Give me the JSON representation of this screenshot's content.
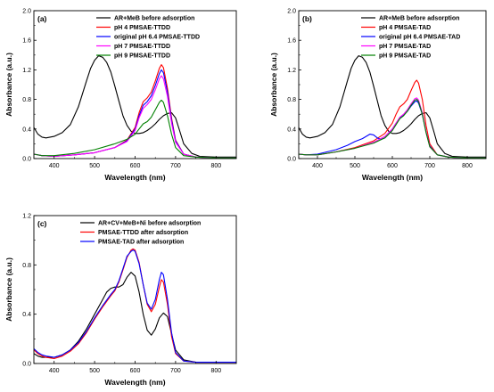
{
  "chart_data": [
    {
      "type": "line",
      "panel_label": "(a)",
      "xlabel": "Wavelength (nm)",
      "ylabel": "Absorbance (a.u.)",
      "xlim": [
        350,
        850
      ],
      "ylim": [
        0.0,
        2.0
      ],
      "xticks": [
        400,
        500,
        600,
        700,
        800
      ],
      "yticks": [
        0.0,
        0.4,
        0.8,
        1.2,
        1.6,
        2.0
      ],
      "ytick_labels": [
        "0.0",
        "0.4",
        "0.8",
        "1.2",
        "1.6",
        "2.0"
      ],
      "legend_position": "top-right",
      "series": [
        {
          "name": "AR+MeB before adsorption",
          "color": "#000000",
          "x": [
            350,
            360,
            370,
            380,
            400,
            420,
            440,
            460,
            480,
            490,
            500,
            510,
            520,
            530,
            540,
            550,
            560,
            570,
            580,
            590,
            600,
            610,
            620,
            630,
            640,
            650,
            660,
            670,
            680,
            690,
            700,
            710,
            720,
            740,
            760,
            800,
            850
          ],
          "y": [
            0.42,
            0.33,
            0.29,
            0.28,
            0.3,
            0.35,
            0.46,
            0.7,
            1.05,
            1.22,
            1.33,
            1.39,
            1.37,
            1.3,
            1.17,
            0.98,
            0.78,
            0.58,
            0.45,
            0.37,
            0.34,
            0.34,
            0.35,
            0.38,
            0.42,
            0.47,
            0.53,
            0.58,
            0.61,
            0.62,
            0.55,
            0.38,
            0.2,
            0.07,
            0.03,
            0.02,
            0.02
          ]
        },
        {
          "name": "pH 4 PMSAE-TTDD",
          "color": "#ff0000",
          "x": [
            350,
            370,
            400,
            450,
            500,
            550,
            580,
            600,
            610,
            620,
            630,
            640,
            650,
            660,
            665,
            670,
            680,
            690,
            700,
            720,
            750,
            800,
            850
          ],
          "y": [
            0.06,
            0.04,
            0.03,
            0.05,
            0.08,
            0.15,
            0.25,
            0.42,
            0.62,
            0.77,
            0.82,
            0.9,
            1.05,
            1.22,
            1.27,
            1.23,
            0.95,
            0.55,
            0.25,
            0.06,
            0.02,
            0.01,
            0.01
          ]
        },
        {
          "name": "original pH 6.4 PMSAE-TTDD",
          "color": "#0000ff",
          "x": [
            350,
            370,
            400,
            450,
            500,
            550,
            580,
            600,
            610,
            620,
            630,
            640,
            650,
            660,
            665,
            670,
            680,
            690,
            700,
            720,
            750,
            800,
            850
          ],
          "y": [
            0.06,
            0.04,
            0.03,
            0.05,
            0.08,
            0.15,
            0.24,
            0.4,
            0.58,
            0.72,
            0.77,
            0.85,
            0.99,
            1.15,
            1.2,
            1.16,
            0.9,
            0.52,
            0.24,
            0.06,
            0.02,
            0.01,
            0.01
          ]
        },
        {
          "name": "pH 7 PMSAE-TTDD",
          "color": "#ff00ff",
          "x": [
            350,
            370,
            400,
            450,
            500,
            550,
            580,
            600,
            610,
            620,
            630,
            640,
            650,
            660,
            665,
            670,
            680,
            690,
            700,
            720,
            750,
            800,
            850
          ],
          "y": [
            0.06,
            0.04,
            0.03,
            0.05,
            0.08,
            0.15,
            0.23,
            0.38,
            0.55,
            0.68,
            0.73,
            0.8,
            0.93,
            1.08,
            1.12,
            1.08,
            0.84,
            0.48,
            0.22,
            0.06,
            0.02,
            0.01,
            0.01
          ]
        },
        {
          "name": "pH 9 PMSAE-TTDD",
          "color": "#008000",
          "x": [
            350,
            370,
            400,
            450,
            500,
            550,
            580,
            600,
            610,
            620,
            630,
            640,
            650,
            660,
            665,
            670,
            680,
            690,
            700,
            720,
            750,
            800,
            850
          ],
          "y": [
            0.06,
            0.04,
            0.04,
            0.07,
            0.12,
            0.2,
            0.26,
            0.33,
            0.4,
            0.47,
            0.5,
            0.56,
            0.66,
            0.76,
            0.79,
            0.76,
            0.58,
            0.33,
            0.15,
            0.04,
            0.02,
            0.01,
            0.01
          ]
        }
      ]
    },
    {
      "type": "line",
      "panel_label": "(b)",
      "xlabel": "Wavelength (nm)",
      "ylabel": "Absorbance (a.u.)",
      "xlim": [
        350,
        850
      ],
      "ylim": [
        0.0,
        2.0
      ],
      "xticks": [
        400,
        500,
        600,
        700,
        800
      ],
      "yticks": [
        0.0,
        0.4,
        0.8,
        1.2,
        1.6,
        2.0
      ],
      "ytick_labels": [
        "0.0",
        "0.4",
        "0.8",
        "1.2",
        "1.6",
        "2.0"
      ],
      "legend_position": "top-right",
      "series": [
        {
          "name": "AR+MeB before adsorption",
          "color": "#000000",
          "x": [
            350,
            360,
            370,
            380,
            400,
            420,
            440,
            460,
            480,
            490,
            500,
            510,
            520,
            530,
            540,
            550,
            560,
            570,
            580,
            590,
            600,
            610,
            620,
            630,
            640,
            650,
            660,
            670,
            680,
            690,
            700,
            710,
            720,
            740,
            760,
            800,
            850
          ],
          "y": [
            0.42,
            0.33,
            0.29,
            0.28,
            0.3,
            0.35,
            0.46,
            0.7,
            1.05,
            1.22,
            1.33,
            1.39,
            1.37,
            1.3,
            1.17,
            0.98,
            0.78,
            0.58,
            0.45,
            0.37,
            0.34,
            0.34,
            0.35,
            0.38,
            0.42,
            0.47,
            0.53,
            0.58,
            0.61,
            0.62,
            0.55,
            0.38,
            0.2,
            0.07,
            0.03,
            0.02,
            0.02
          ]
        },
        {
          "name": "pH 4 PMSAE-TAD",
          "color": "#ff0000",
          "x": [
            350,
            370,
            400,
            450,
            500,
            550,
            580,
            600,
            610,
            620,
            630,
            640,
            650,
            660,
            665,
            670,
            680,
            690,
            700,
            720,
            750,
            800,
            850
          ],
          "y": [
            0.06,
            0.05,
            0.05,
            0.09,
            0.15,
            0.24,
            0.34,
            0.48,
            0.6,
            0.7,
            0.74,
            0.8,
            0.92,
            1.03,
            1.06,
            1.02,
            0.8,
            0.45,
            0.2,
            0.05,
            0.02,
            0.01,
            0.01
          ]
        },
        {
          "name": "original pH 6.4 PMSAE-TAD",
          "color": "#0000ff",
          "x": [
            350,
            370,
            400,
            450,
            480,
            500,
            520,
            540,
            550,
            560,
            570,
            580,
            590,
            600,
            610,
            620,
            630,
            640,
            650,
            660,
            665,
            670,
            680,
            690,
            700,
            720,
            750,
            800,
            850
          ],
          "y": [
            0.06,
            0.05,
            0.06,
            0.12,
            0.18,
            0.23,
            0.27,
            0.33,
            0.32,
            0.28,
            0.26,
            0.28,
            0.33,
            0.4,
            0.48,
            0.55,
            0.59,
            0.64,
            0.71,
            0.77,
            0.78,
            0.75,
            0.6,
            0.36,
            0.17,
            0.05,
            0.02,
            0.01,
            0.01
          ]
        },
        {
          "name": "pH 7 PMSAE-TAD",
          "color": "#ff00ff",
          "x": [
            350,
            370,
            400,
            450,
            500,
            550,
            580,
            600,
            610,
            620,
            630,
            640,
            650,
            660,
            665,
            670,
            680,
            690,
            700,
            720,
            750,
            800,
            850
          ],
          "y": [
            0.06,
            0.05,
            0.05,
            0.09,
            0.14,
            0.22,
            0.3,
            0.4,
            0.48,
            0.56,
            0.6,
            0.66,
            0.74,
            0.81,
            0.82,
            0.79,
            0.62,
            0.36,
            0.16,
            0.05,
            0.02,
            0.01,
            0.01
          ]
        },
        {
          "name": "pH 9 PMSAE-TAD",
          "color": "#008000",
          "x": [
            350,
            370,
            400,
            450,
            500,
            550,
            580,
            600,
            610,
            620,
            630,
            640,
            650,
            660,
            665,
            670,
            680,
            690,
            700,
            720,
            750,
            800,
            850
          ],
          "y": [
            0.06,
            0.05,
            0.05,
            0.09,
            0.14,
            0.21,
            0.28,
            0.38,
            0.46,
            0.54,
            0.58,
            0.64,
            0.72,
            0.79,
            0.8,
            0.77,
            0.6,
            0.35,
            0.16,
            0.05,
            0.02,
            0.01,
            0.01
          ]
        }
      ]
    },
    {
      "type": "line",
      "panel_label": "(c)",
      "xlabel": "Wavelength (nm)",
      "ylabel": "Absorbance (a.u.)",
      "xlim": [
        350,
        850
      ],
      "ylim": [
        0.0,
        1.2
      ],
      "xticks": [
        400,
        500,
        600,
        700,
        800
      ],
      "yticks": [
        0.0,
        0.4,
        0.8,
        1.2
      ],
      "ytick_labels": [
        "0.0",
        "0.4",
        "0.8",
        "1.2"
      ],
      "legend_position": "top-right",
      "series": [
        {
          "name": "AR+CV+MeB+Ni before adsorption",
          "color": "#000000",
          "x": [
            350,
            360,
            370,
            380,
            400,
            420,
            440,
            460,
            480,
            500,
            520,
            530,
            540,
            550,
            560,
            570,
            580,
            590,
            600,
            610,
            620,
            630,
            640,
            650,
            660,
            670,
            680,
            690,
            700,
            720,
            750,
            800,
            850
          ],
          "y": [
            0.08,
            0.06,
            0.05,
            0.05,
            0.05,
            0.07,
            0.11,
            0.18,
            0.28,
            0.4,
            0.52,
            0.58,
            0.61,
            0.62,
            0.62,
            0.64,
            0.7,
            0.74,
            0.71,
            0.58,
            0.4,
            0.27,
            0.23,
            0.28,
            0.37,
            0.41,
            0.38,
            0.24,
            0.11,
            0.03,
            0.01,
            0.01,
            0.01
          ]
        },
        {
          "name": "PMSAE-TTDD after adsorption",
          "color": "#ff0000",
          "x": [
            350,
            360,
            370,
            380,
            400,
            420,
            440,
            460,
            480,
            500,
            520,
            540,
            550,
            560,
            570,
            580,
            590,
            595,
            600,
            610,
            620,
            630,
            640,
            650,
            660,
            665,
            670,
            680,
            690,
            700,
            720,
            750,
            800,
            850
          ],
          "y": [
            0.11,
            0.08,
            0.06,
            0.05,
            0.04,
            0.06,
            0.1,
            0.16,
            0.25,
            0.36,
            0.46,
            0.55,
            0.59,
            0.66,
            0.76,
            0.86,
            0.92,
            0.93,
            0.92,
            0.82,
            0.64,
            0.48,
            0.42,
            0.48,
            0.62,
            0.68,
            0.66,
            0.48,
            0.22,
            0.08,
            0.02,
            0.01,
            0.01,
            0.01
          ]
        },
        {
          "name": "PMSAE-TAD after adsorption",
          "color": "#0000ff",
          "x": [
            350,
            360,
            370,
            380,
            400,
            420,
            440,
            460,
            480,
            500,
            520,
            540,
            550,
            560,
            570,
            580,
            590,
            595,
            600,
            610,
            620,
            630,
            640,
            650,
            660,
            665,
            670,
            680,
            690,
            700,
            720,
            750,
            800,
            850
          ],
          "y": [
            0.12,
            0.09,
            0.07,
            0.06,
            0.05,
            0.07,
            0.11,
            0.17,
            0.26,
            0.37,
            0.47,
            0.56,
            0.6,
            0.67,
            0.77,
            0.87,
            0.91,
            0.92,
            0.91,
            0.81,
            0.64,
            0.49,
            0.44,
            0.52,
            0.68,
            0.74,
            0.72,
            0.52,
            0.25,
            0.09,
            0.02,
            0.01,
            0.01,
            0.01
          ]
        }
      ]
    }
  ]
}
